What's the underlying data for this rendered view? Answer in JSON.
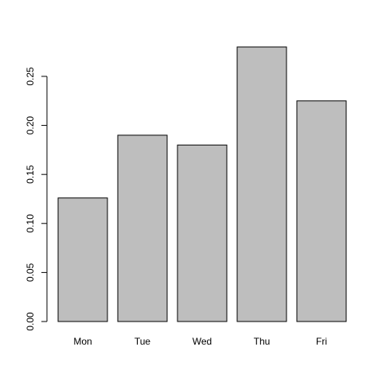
{
  "chart_data": {
    "type": "bar",
    "title": "",
    "xlabel": "",
    "ylabel": "",
    "categories": [
      "Mon",
      "Tue",
      "Wed",
      "Thu",
      "Fri"
    ],
    "values": [
      0.126,
      0.19,
      0.18,
      0.28,
      0.225
    ],
    "ylim": [
      0,
      0.28
    ],
    "yticks": [
      0.0,
      0.05,
      0.1,
      0.15,
      0.2,
      0.25
    ],
    "ytick_labels": [
      "0.00",
      "0.05",
      "0.10",
      "0.15",
      "0.20",
      "0.25"
    ],
    "grid": false,
    "legend": "none",
    "colors": {
      "bar_fill": "#bebebe",
      "bar_border": "#000000",
      "axis": "#000000",
      "background": "#ffffff"
    }
  }
}
